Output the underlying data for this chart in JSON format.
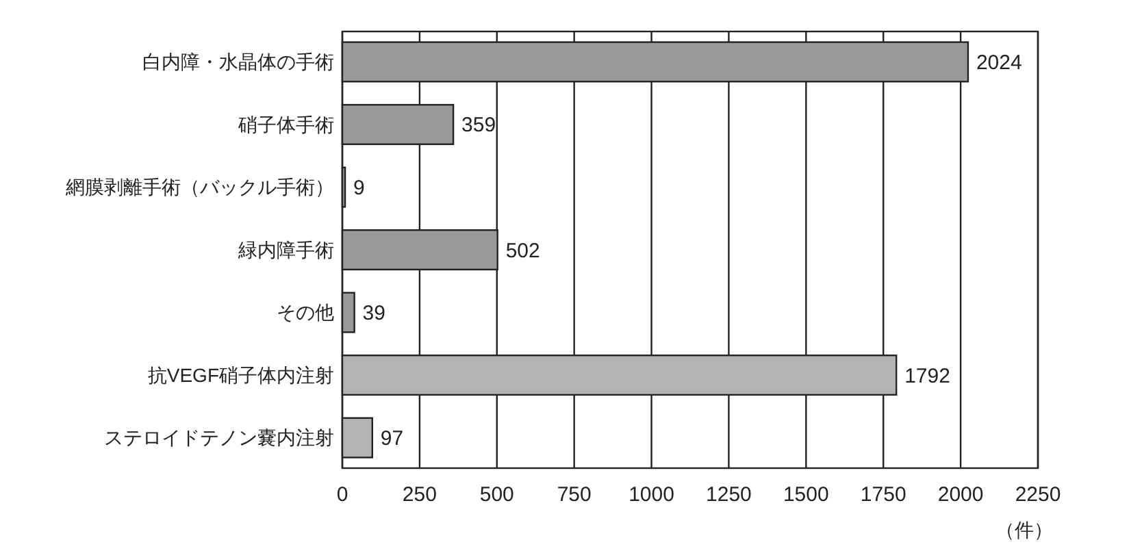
{
  "chart_data": {
    "type": "bar",
    "orientation": "horizontal",
    "xlabel": "（件）",
    "categories": [
      "白内障・水晶体の手術",
      "硝子体手術",
      "網膜剥離手術（バックル手術）",
      "緑内障手術",
      "その他",
      "抗VEGF硝子体内注射",
      "ステロイドテノン嚢内注射"
    ],
    "values": [
      2024,
      359,
      9,
      502,
      39,
      1792,
      97
    ],
    "colors": [
      "#999999",
      "#999999",
      "#999999",
      "#999999",
      "#999999",
      "#b3b3b3",
      "#b3b3b3"
    ],
    "xlim": [
      0,
      2250
    ],
    "xticks": [
      0,
      250,
      500,
      750,
      1000,
      1250,
      1500,
      1750,
      2000,
      2250
    ],
    "grid": "x",
    "data_labels": true
  }
}
